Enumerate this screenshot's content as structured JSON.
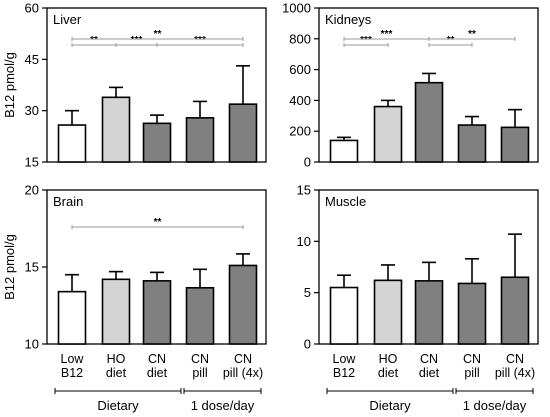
{
  "figure": {
    "ylabel": "B12 pmol/g",
    "groups": [
      {
        "label": "Dietary"
      },
      {
        "label": "1 dose/day"
      }
    ]
  },
  "chart_data": [
    {
      "type": "bar",
      "title": "Liver",
      "ylabel": "B12 pmol/g",
      "ylim": [
        15,
        60
      ],
      "yticks": [
        15,
        30,
        45,
        60
      ],
      "categories": [
        "Low\nB12",
        "HO\ndiet",
        "CN\ndiet",
        "CN\npill",
        "CN\npill (4x)"
      ],
      "values": [
        25.8,
        33.9,
        26.3,
        27.9,
        31.9
      ],
      "errors": [
        4.2,
        2.9,
        2.4,
        4.8,
        11.2
      ],
      "significance": [
        {
          "from": 0,
          "to": 1,
          "label": "**",
          "level": 1
        },
        {
          "from": 1,
          "to": 2,
          "label": "***",
          "level": 1
        },
        {
          "from": 2,
          "to": 4,
          "label": "***",
          "level": 1
        },
        {
          "from": 0,
          "to": 4,
          "label": "**",
          "level": 2
        }
      ]
    },
    {
      "type": "bar",
      "title": "Kidneys",
      "ylim": [
        0,
        1000
      ],
      "yticks": [
        0,
        200,
        400,
        600,
        800,
        1000
      ],
      "categories": [
        "Low\nB12",
        "HO\ndiet",
        "CN\ndiet",
        "CN\npill",
        "CN\npill (4x)"
      ],
      "values": [
        140,
        360,
        515,
        240,
        225
      ],
      "errors": [
        20,
        40,
        60,
        55,
        115
      ],
      "significance": [
        {
          "from": 0,
          "to": 1,
          "label": "***",
          "level": 1
        },
        {
          "from": 2,
          "to": 3,
          "label": "**",
          "level": 1
        },
        {
          "from": 0,
          "to": 2,
          "label": "***",
          "level": 2
        },
        {
          "from": 2,
          "to": 4,
          "label": "**",
          "level": 2
        }
      ]
    },
    {
      "type": "bar",
      "title": "Brain",
      "ylabel": "B12 pmol/g",
      "ylim": [
        10,
        20
      ],
      "yticks": [
        10,
        15,
        20
      ],
      "categories": [
        "Low\nB12",
        "HO\ndiet",
        "CN\ndiet",
        "CN\npill",
        "CN\npill (4x)"
      ],
      "values": [
        13.4,
        14.2,
        14.1,
        13.65,
        15.1
      ],
      "errors": [
        1.1,
        0.5,
        0.55,
        1.2,
        0.75
      ],
      "significance": [
        {
          "from": 0,
          "to": 4,
          "label": "**",
          "level": 1
        }
      ]
    },
    {
      "type": "bar",
      "title": "Muscle",
      "ylim": [
        0,
        15
      ],
      "yticks": [
        0,
        5,
        10,
        15
      ],
      "categories": [
        "Low\nB12",
        "HO\ndiet",
        "CN\ndiet",
        "CN\npill",
        "CN\npill (4x)"
      ],
      "values": [
        5.5,
        6.2,
        6.15,
        5.9,
        6.5
      ],
      "errors": [
        1.2,
        1.5,
        1.8,
        2.4,
        4.2
      ],
      "significance": []
    }
  ],
  "style": {
    "bar_fills": [
      "#ffffff",
      "#d4d4d4",
      "#808080",
      "#808080",
      "#808080"
    ],
    "bar_stroke": "#000000",
    "sig_line": "#999999"
  }
}
